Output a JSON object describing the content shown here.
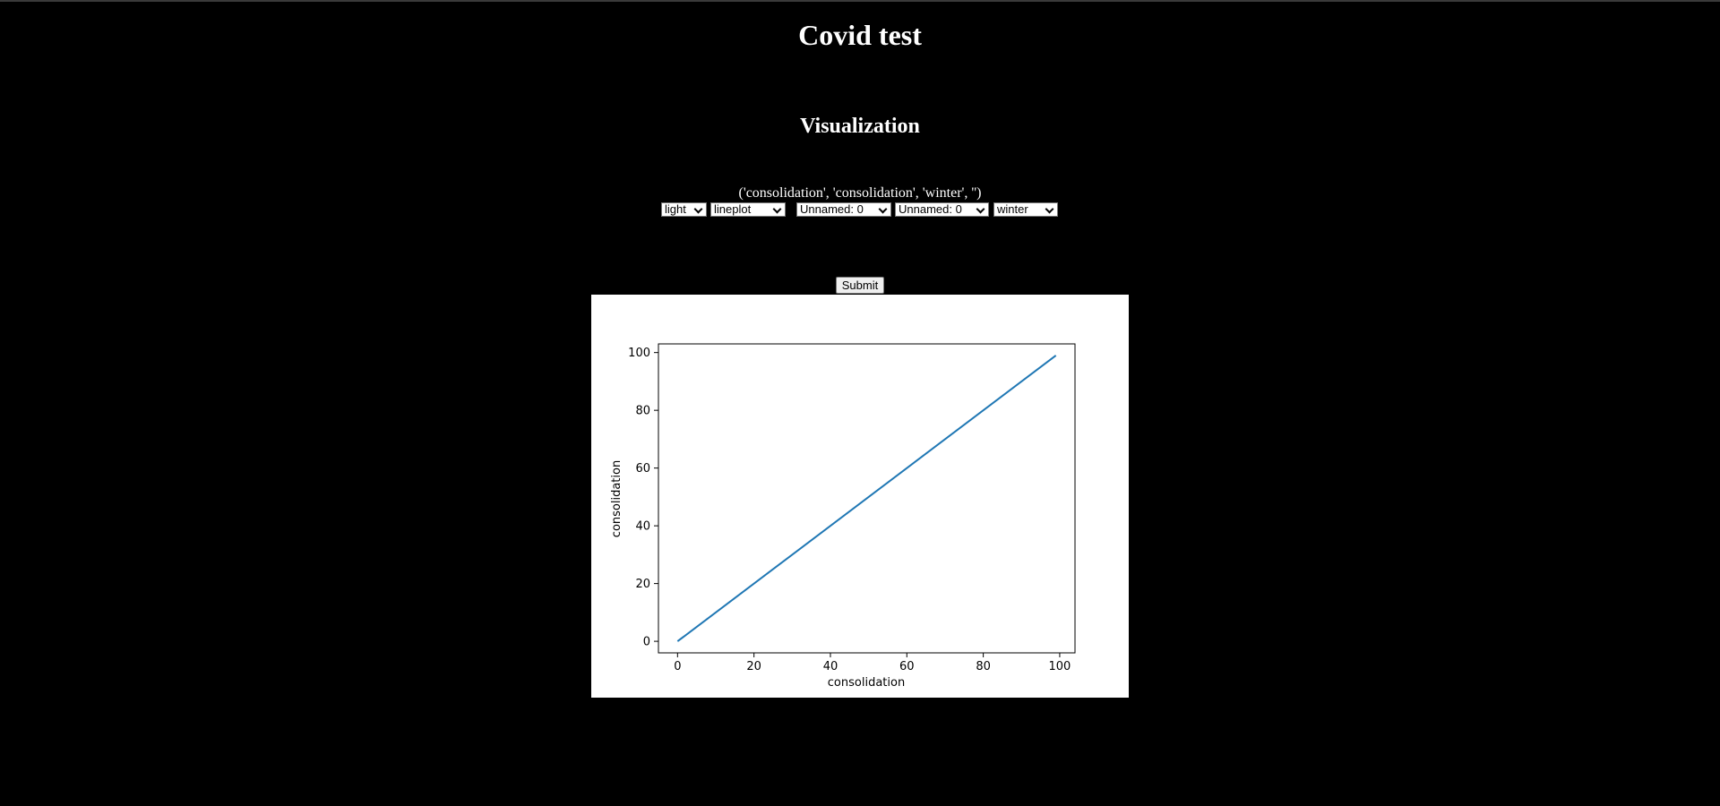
{
  "page": {
    "title": "Covid test",
    "subtitle": "Visualization",
    "selection_text": "('consolidation', 'consolidation', 'winter', '')"
  },
  "controls": {
    "theme": "light",
    "plot_type": "lineplot",
    "x_column": "Unnamed: 0",
    "y_column": "Unnamed: 0",
    "colormap": "winter",
    "submit_label": "Submit"
  },
  "colors": {
    "background": "#000000",
    "line": "#1f77b4"
  },
  "chart_data": {
    "type": "line",
    "xlabel": "consolidation",
    "ylabel": "consolidation",
    "xlim": [
      -5,
      104
    ],
    "ylim": [
      -4,
      103
    ],
    "x_ticks": [
      0,
      20,
      40,
      60,
      80,
      100
    ],
    "y_ticks": [
      0,
      20,
      40,
      60,
      80,
      100
    ],
    "x_tick_labels": [
      "0",
      "20",
      "40",
      "60",
      "80",
      "100"
    ],
    "y_tick_labels": [
      "0",
      "20",
      "40",
      "60",
      "80",
      "100"
    ],
    "grid": false,
    "series": [
      {
        "x": [
          0,
          99
        ],
        "y": [
          0,
          99
        ]
      }
    ]
  }
}
